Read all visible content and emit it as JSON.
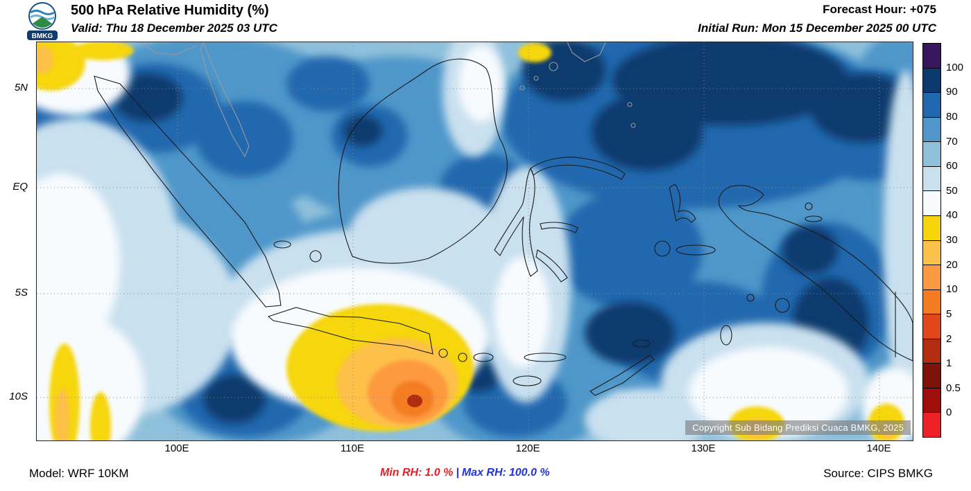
{
  "header": {
    "logo_text": "BMKG",
    "title": "500 hPa Relative Humidity (%)",
    "valid_label": "Valid: Thu 18 December 2025 03 UTC",
    "forecast_hour": "Forecast Hour: +075",
    "initial_run": "Initial Run: Mon 15 December 2025 00 UTC"
  },
  "map": {
    "lat_ticks": [
      "5N",
      "EQ",
      "5S",
      "10S"
    ],
    "lon_ticks": [
      "100E",
      "110E",
      "120E",
      "130E",
      "140E"
    ],
    "copyright": "Copyright Sub Bidang Prediksi Cuaca BMKG, 2025"
  },
  "colorbar": {
    "unit": "%",
    "tick_labels": [
      "100",
      "90",
      "80",
      "70",
      "60",
      "50",
      "40",
      "30",
      "20",
      "10",
      "5",
      "2",
      "1",
      "0.5",
      "0"
    ],
    "segment_colors": [
      "#38175e",
      "#0d3a6e",
      "#2068ae",
      "#4f97ca",
      "#8fc0db",
      "#c9e0ef",
      "#f8fbfe",
      "#f6d60b",
      "#fdc04a",
      "#fd9a41",
      "#f47b20",
      "#e0471d",
      "#b22c10",
      "#7d1407",
      "#a00d0d",
      "#ee2127"
    ]
  },
  "footer": {
    "model": "Model: WRF 10KM",
    "min_rh_label": "Min RH:",
    "min_rh_value": "1.0 %",
    "separator": "|",
    "max_rh_label": "Max RH:",
    "max_rh_value": "100.0 %",
    "source": "Source: CIPS BMKG"
  },
  "colors": {
    "min_rh_text": "#e31f26",
    "max_rh_text": "#2233dd"
  }
}
